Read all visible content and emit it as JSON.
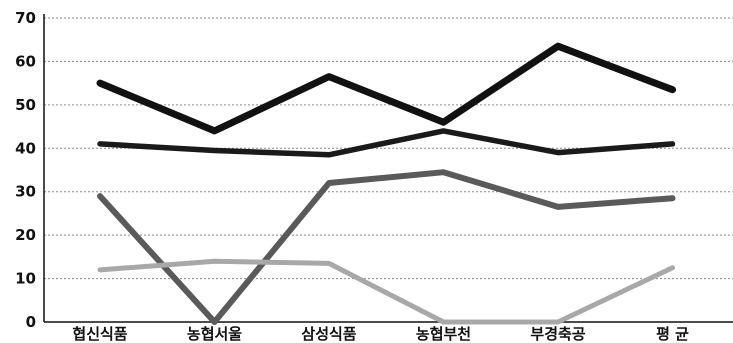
{
  "chart_data": {
    "type": "line",
    "title": "",
    "xlabel": "",
    "ylabel": "",
    "categories": [
      "협신식품",
      "농협서울",
      "삼성식품",
      "농협부천",
      "부경축공",
      "평 균"
    ],
    "ylim": [
      0,
      70
    ],
    "yticks": [
      0,
      10,
      20,
      30,
      40,
      50,
      60,
      70
    ],
    "grid": true,
    "legend": "none",
    "series": [
      {
        "values": [
          55,
          44,
          56.5,
          46,
          63.5,
          53.5
        ],
        "color": "#111111"
      },
      {
        "values": [
          41,
          39.5,
          38.5,
          44,
          39,
          41
        ],
        "color": "#1a1a1a"
      },
      {
        "values": [
          29,
          0,
          32,
          34.5,
          26.5,
          28.5
        ],
        "color": "#5a5a5a"
      },
      {
        "values": [
          12,
          14,
          13.5,
          0,
          0,
          12.5
        ],
        "color": "#a8a8a8"
      }
    ]
  }
}
